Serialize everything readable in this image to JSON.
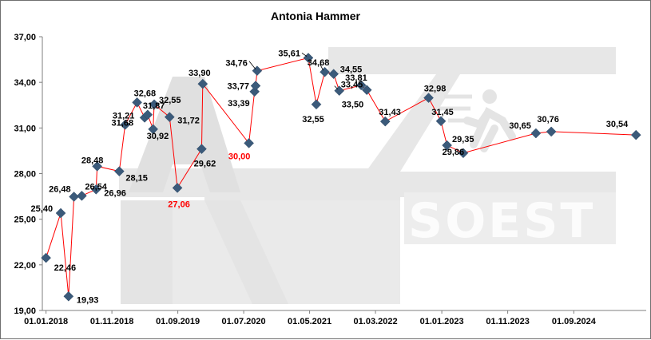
{
  "chart_data": {
    "type": "line",
    "title": "Antonia Hammer",
    "xlabel": "",
    "ylabel": "",
    "ylim": [
      19.0,
      37.0
    ],
    "yticks": [
      "19,00",
      "22,00",
      "25,00",
      "28,00",
      "31,00",
      "34,00",
      "37,00"
    ],
    "xticks": [
      "01.01.2018",
      "01.11.2018",
      "01.09.2019",
      "01.07.2020",
      "01.05.2021",
      "01.03.2022",
      "01.01.2023",
      "01.11.2023",
      "01.09.2024"
    ],
    "xlim": [
      "2017-12-15",
      "2025-08-01"
    ],
    "grid": false,
    "legend": "none",
    "line_color": "#ff0000",
    "marker_color": "#3b5a7a",
    "highlight_color": "#ff0000",
    "watermark": "LAZ SOEST",
    "points": [
      {
        "x": "2018-01-01",
        "y": 22.46,
        "label": "22,46"
      },
      {
        "x": "2018-03-10",
        "y": 25.4,
        "label": "25,40"
      },
      {
        "x": "2018-04-15",
        "y": 19.93,
        "label": "19,93"
      },
      {
        "x": "2018-05-10",
        "y": 26.48,
        "label": "26,48"
      },
      {
        "x": "2018-06-15",
        "y": 26.54,
        "label": "26,54"
      },
      {
        "x": "2018-08-20",
        "y": 26.96,
        "label": "26,96"
      },
      {
        "x": "2018-08-25",
        "y": 28.48,
        "label": "28,48"
      },
      {
        "x": "2018-12-05",
        "y": 28.15,
        "label": "28,15"
      },
      {
        "x": "2019-01-01",
        "y": 31.21,
        "label": "31,21"
      },
      {
        "x": "2019-02-25",
        "y": 32.68,
        "label": "32,68"
      },
      {
        "x": "2019-04-01",
        "y": 31.68,
        "label": "31,68"
      },
      {
        "x": "2019-04-15",
        "y": 31.87,
        "label": "31,87"
      },
      {
        "x": "2019-05-10",
        "y": 30.92,
        "label": "30,92"
      },
      {
        "x": "2019-05-15",
        "y": 32.55,
        "label": "32,55"
      },
      {
        "x": "2019-07-25",
        "y": 31.72,
        "label": "31,72"
      },
      {
        "x": "2019-08-30",
        "y": 27.06,
        "label": "27,06",
        "highlight": true
      },
      {
        "x": "2019-12-20",
        "y": 29.62,
        "label": "29,62"
      },
      {
        "x": "2019-12-25",
        "y": 33.9,
        "label": "33,90"
      },
      {
        "x": "2020-07-25",
        "y": 30.0,
        "label": "30,00",
        "highlight": true
      },
      {
        "x": "2020-08-20",
        "y": 33.39,
        "label": "33,39"
      },
      {
        "x": "2020-08-25",
        "y": 33.77,
        "label": "33,77"
      },
      {
        "x": "2020-09-01",
        "y": 34.76,
        "label": "34,76"
      },
      {
        "x": "2021-04-25",
        "y": 35.61,
        "label": "35,61"
      },
      {
        "x": "2021-06-01",
        "y": 32.55,
        "label": "32,55"
      },
      {
        "x": "2021-07-10",
        "y": 34.68,
        "label": "34,68"
      },
      {
        "x": "2021-08-20",
        "y": 34.55,
        "label": "34,55"
      },
      {
        "x": "2021-09-15",
        "y": 33.45,
        "label": "33,45"
      },
      {
        "x": "2021-12-25",
        "y": 33.81,
        "label": "33,81"
      },
      {
        "x": "2022-01-20",
        "y": 33.5,
        "label": "33,50"
      },
      {
        "x": "2022-04-15",
        "y": 31.43,
        "label": "31,43"
      },
      {
        "x": "2022-11-01",
        "y": 32.98,
        "label": "32,98"
      },
      {
        "x": "2022-12-28",
        "y": 31.45,
        "label": "31,45"
      },
      {
        "x": "2023-01-25",
        "y": 29.86,
        "label": "29,86"
      },
      {
        "x": "2023-04-10",
        "y": 29.35,
        "label": "29,35"
      },
      {
        "x": "2024-03-10",
        "y": 30.65,
        "label": "30,65"
      },
      {
        "x": "2024-05-20",
        "y": 30.76,
        "label": "30,76"
      },
      {
        "x": "2025-06-15",
        "y": 30.54,
        "label": "30,54"
      }
    ]
  }
}
